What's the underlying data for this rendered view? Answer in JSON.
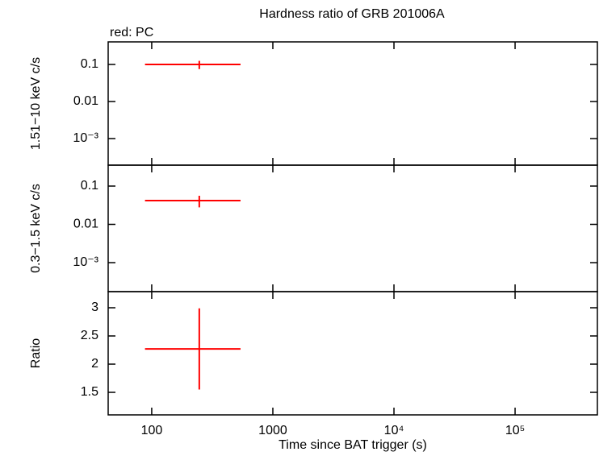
{
  "chart_data": [
    {
      "type": "errorbar",
      "title": "Hardness ratio of GRB 201006A",
      "subtitle": "red: PC",
      "ylabel": "1.51−10 keV c/s",
      "yscale": "log",
      "color": "#ff0000",
      "x": [
        247
      ],
      "x_start": [
        88
      ],
      "x_end": [
        541
      ],
      "values": [
        0.1
      ],
      "errors": [
        0.025
      ],
      "ylim": [
        0.000192,
        0.406
      ],
      "yticks": [
        0.1,
        0.01,
        {
          "value": 0.001,
          "label": "10⁻³"
        }
      ]
    },
    {
      "type": "errorbar",
      "ylabel": "0.3−1.5 keV c/s",
      "yscale": "log",
      "color": "#ff0000",
      "x": [
        247
      ],
      "x_start": [
        88
      ],
      "x_end": [
        541
      ],
      "values": [
        0.0418
      ],
      "errors": [
        0.014
      ],
      "ylim": [
        0.000175,
        0.352
      ],
      "yticks": [
        0.1,
        0.01,
        {
          "value": 0.001,
          "label": "10⁻³"
        }
      ]
    },
    {
      "type": "errorbar",
      "ylabel": "Ratio",
      "xlabel": "Time since BAT trigger (s)",
      "yscale": "linear",
      "xscale": "log",
      "color": "#ff0000",
      "x": [
        247
      ],
      "x_start": [
        88
      ],
      "x_end": [
        541
      ],
      "values": [
        2.27
      ],
      "errors": [
        0.72
      ],
      "ylim": [
        1.1,
        3.286
      ],
      "yticks": [
        3,
        2.5,
        2,
        1.5
      ],
      "xlim": [
        43.7,
        478000
      ],
      "xticks": [
        100,
        1000,
        {
          "value": 10000,
          "label": "10⁴"
        },
        {
          "value": 100000,
          "label": "10⁵"
        }
      ]
    }
  ]
}
